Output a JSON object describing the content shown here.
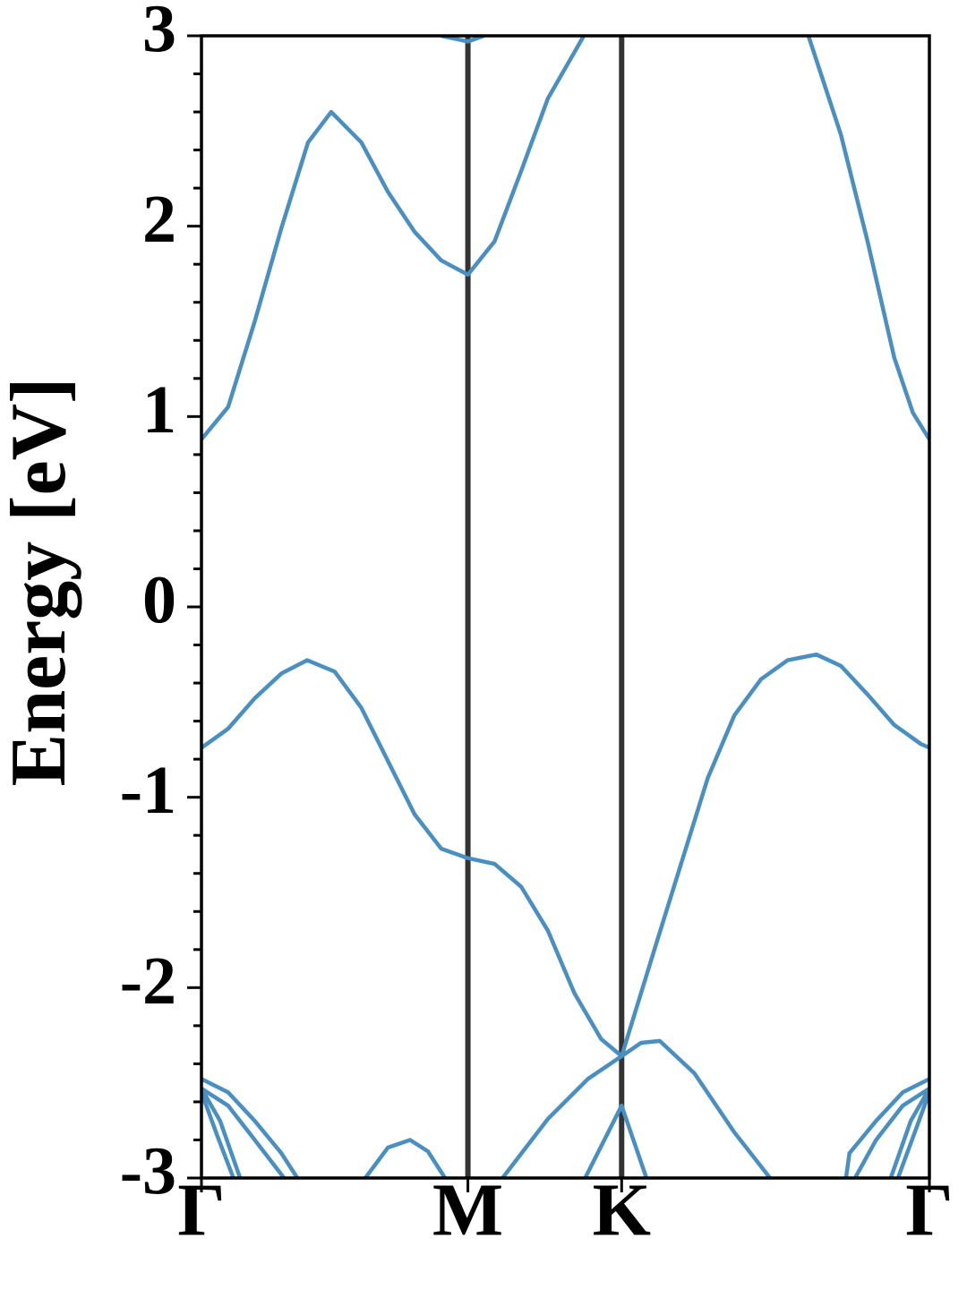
{
  "chart_data": {
    "type": "line",
    "ylabel": "Energy [eV]",
    "xlim": [
      0,
      2.732
    ],
    "ylim": [
      -3,
      3
    ],
    "xticks": [
      {
        "value": 0,
        "label": "Γ"
      },
      {
        "value": 1,
        "label": "M"
      },
      {
        "value": 1.577,
        "label": "K"
      },
      {
        "value": 2.732,
        "label": "Γ"
      }
    ],
    "yticks": [
      -3,
      -2,
      -1,
      0,
      1,
      2,
      3
    ],
    "yminorticks": [
      -2.8,
      -2.6,
      -2.4,
      -2.2,
      -1.8,
      -1.6,
      -1.4,
      -1.2,
      -0.8,
      -0.6,
      -0.4,
      -0.2,
      0.2,
      0.4,
      0.6,
      0.8,
      1.2,
      1.4,
      1.6,
      1.8,
      2.2,
      2.4,
      2.6,
      2.8
    ],
    "vlines_at_ticks": true,
    "series": [
      {
        "color": "#4a8fc2",
        "x": [
          0,
          0.1,
          0.2,
          0.3,
          0.4,
          0.487,
          0.6,
          0.7,
          0.8,
          0.9,
          1.0,
          1.1,
          1.2,
          1.3,
          1.435,
          1.8,
          2.278,
          2.4,
          2.5,
          2.6,
          2.67,
          2.732
        ],
        "values": [
          0.88,
          1.05,
          1.5,
          1.99,
          2.44,
          2.6,
          2.44,
          2.18,
          1.97,
          1.82,
          1.745,
          1.92,
          2.29,
          2.67,
          3.0,
          null,
          3.0,
          2.48,
          1.92,
          1.31,
          1.02,
          0.88
        ]
      },
      {
        "color": "#4a8fc2",
        "x": [
          0.9,
          1.0,
          1.06
        ],
        "values": [
          3.0,
          2.97,
          3.0
        ]
      },
      {
        "color": "#4a8fc2",
        "x": [
          0,
          0.1,
          0.2,
          0.3,
          0.397,
          0.5,
          0.6,
          0.7,
          0.8,
          0.9,
          1.0,
          1.1,
          1.2,
          1.3,
          1.4,
          1.5,
          1.577,
          1.7,
          1.8,
          1.9,
          2.0,
          2.1,
          2.2,
          2.308,
          2.4,
          2.5,
          2.6,
          2.7,
          2.732
        ],
        "values": [
          -0.74,
          -0.64,
          -0.48,
          -0.35,
          -0.28,
          -0.34,
          -0.53,
          -0.81,
          -1.09,
          -1.27,
          -1.32,
          -1.35,
          -1.47,
          -1.7,
          -2.03,
          -2.27,
          -2.36,
          -1.8,
          -1.35,
          -0.9,
          -0.57,
          -0.38,
          -0.28,
          -0.25,
          -0.31,
          -0.46,
          -0.62,
          -0.72,
          -0.74
        ]
      },
      {
        "color": "#4a8fc2",
        "x": [
          1.13,
          1.3,
          1.45,
          1.577,
          1.65,
          1.72,
          1.85,
          2.0,
          2.134
        ],
        "values": [
          -3,
          -2.69,
          -2.48,
          -2.36,
          -2.29,
          -2.28,
          -2.45,
          -2.76,
          -3
        ]
      },
      {
        "color": "#4a8fc2",
        "x": [
          1.44,
          1.577,
          1.67
        ],
        "values": [
          -3,
          -2.62,
          -3
        ]
      },
      {
        "color": "#4a8fc2",
        "x": [
          0.615,
          0.7,
          0.783,
          0.85,
          0.914
        ],
        "values": [
          -3,
          -2.84,
          -2.8,
          -2.86,
          -3
        ]
      },
      {
        "color": "#4a8fc2",
        "x": [
          0,
          0.1,
          0.2,
          0.3,
          0.36
        ],
        "values": [
          -2.48,
          -2.55,
          -2.7,
          -2.87,
          -3
        ]
      },
      {
        "color": "#4a8fc2",
        "x": [
          0,
          0.1,
          0.2,
          0.31
        ],
        "values": [
          -2.53,
          -2.62,
          -2.8,
          -3
        ]
      },
      {
        "color": "#4a8fc2",
        "x": [
          0,
          0.07,
          0.145
        ],
        "values": [
          -2.53,
          -2.7,
          -3
        ]
      },
      {
        "color": "#4a8fc2",
        "x": [
          0,
          0.06,
          0.12
        ],
        "values": [
          -2.55,
          -2.78,
          -3
        ]
      },
      {
        "color": "#4a8fc2",
        "x": [
          2.419,
          2.432,
          2.532,
          2.632,
          2.732
        ],
        "values": [
          -3,
          -2.87,
          -2.7,
          -2.55,
          -2.48
        ]
      },
      {
        "color": "#4a8fc2",
        "x": [
          2.453,
          2.532,
          2.632,
          2.732
        ],
        "values": [
          -3,
          -2.8,
          -2.62,
          -2.53
        ]
      },
      {
        "color": "#4a8fc2",
        "x": [
          2.587,
          2.662,
          2.732
        ],
        "values": [
          -3,
          -2.7,
          -2.53
        ]
      },
      {
        "color": "#4a8fc2",
        "x": [
          2.614,
          2.672,
          2.732
        ],
        "values": [
          -3,
          -2.78,
          -2.55
        ]
      }
    ]
  }
}
